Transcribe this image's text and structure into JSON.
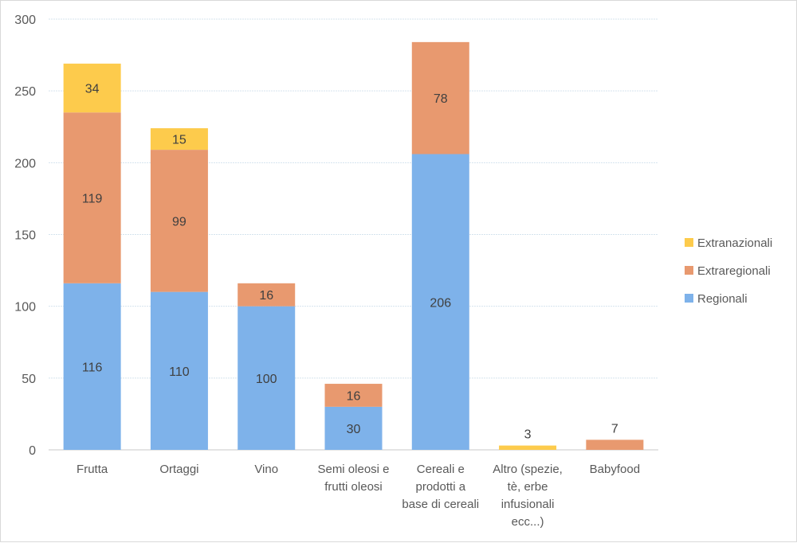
{
  "chart_data": {
    "type": "bar",
    "stacked": true,
    "title": "",
    "xlabel": "",
    "ylabel": "",
    "ylim": [
      0,
      300
    ],
    "yticks": [
      0,
      50,
      100,
      150,
      200,
      250,
      300
    ],
    "grid": true,
    "legend_position": "right",
    "categories": [
      "Frutta",
      "Ortaggi",
      "Vino",
      "Semi oleosi e frutti oleosi",
      "Cereali e prodotti a base di cereali",
      "Altro (spezie, tè, erbe infusionali ecc...)",
      "Babyfood"
    ],
    "category_lines": [
      [
        "Frutta"
      ],
      [
        "Ortaggi"
      ],
      [
        "Vino"
      ],
      [
        "Semi oleosi e",
        "frutti oleosi"
      ],
      [
        "Cereali e",
        "prodotti a",
        "base di cereali"
      ],
      [
        "Altro (spezie,",
        "tè, erbe",
        "infusionali",
        "ecc...)"
      ],
      [
        "Babyfood"
      ]
    ],
    "series": [
      {
        "name": "Regionali",
        "color": "#7eb2ea",
        "values": [
          116,
          110,
          100,
          30,
          206,
          null,
          null
        ]
      },
      {
        "name": "Extraregionali",
        "color": "#e8996f",
        "values": [
          119,
          99,
          16,
          16,
          78,
          null,
          7
        ]
      },
      {
        "name": "Extranazionali",
        "color": "#fdcb4c",
        "values": [
          34,
          15,
          null,
          null,
          null,
          3,
          null
        ]
      }
    ]
  }
}
